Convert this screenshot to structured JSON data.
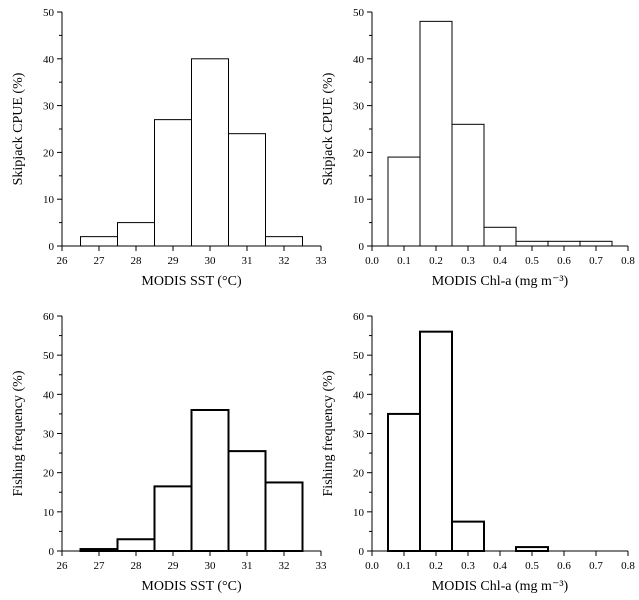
{
  "chart_data": [
    {
      "type": "bar",
      "title": "",
      "xlabel": "MODIS SST (°C)",
      "ylabel": "Skipjack CPUE (%)",
      "xlim": [
        26,
        33
      ],
      "ylim": [
        0,
        50
      ],
      "xticks": [
        "26",
        "27",
        "28",
        "29",
        "30",
        "31",
        "32",
        "33"
      ],
      "yticks": [
        "0",
        "10",
        "20",
        "30",
        "40",
        "50"
      ],
      "bin_edges": [
        26.5,
        27.5,
        28.5,
        29.5,
        30.5,
        31.5,
        32.5
      ],
      "values": [
        2,
        5,
        27,
        40,
        24,
        2
      ],
      "bar_stroke": 1,
      "grid": false
    },
    {
      "type": "bar",
      "title": "",
      "xlabel": "MODIS Chl-a (mg m⁻³)",
      "ylabel": "Skipjack CPUE (%)",
      "xlim": [
        0.0,
        0.8
      ],
      "ylim": [
        0,
        50
      ],
      "xticks": [
        "0.0",
        "0.1",
        "0.2",
        "0.3",
        "0.4",
        "0.5",
        "0.6",
        "0.7",
        "0.8"
      ],
      "yticks": [
        "0",
        "10",
        "20",
        "30",
        "40",
        "50"
      ],
      "bin_edges": [
        0.05,
        0.15,
        0.25,
        0.35,
        0.45,
        0.55,
        0.65,
        0.75
      ],
      "values": [
        19,
        48,
        26,
        4,
        1,
        1,
        1
      ],
      "bar_stroke": 1,
      "grid": false
    },
    {
      "type": "bar",
      "title": "",
      "xlabel": "MODIS SST (°C)",
      "ylabel": "Fishing frequency (%)",
      "xlim": [
        26,
        33
      ],
      "ylim": [
        0,
        60
      ],
      "xticks": [
        "26",
        "27",
        "28",
        "29",
        "30",
        "31",
        "32",
        "33"
      ],
      "yticks": [
        "0",
        "10",
        "20",
        "30",
        "40",
        "50",
        "60"
      ],
      "bin_edges": [
        26.5,
        27.5,
        28.5,
        29.5,
        30.5,
        31.5,
        32.5
      ],
      "values": [
        0.5,
        3,
        16.5,
        36,
        25.5,
        17.5
      ],
      "bar_stroke": 2,
      "grid": false
    },
    {
      "type": "bar",
      "title": "",
      "xlabel": "MODIS Chl-a (mg m⁻³)",
      "ylabel": "Fishing frequency (%)",
      "xlim": [
        0.0,
        0.8
      ],
      "ylim": [
        0,
        60
      ],
      "xticks": [
        "0.0",
        "0.1",
        "0.2",
        "0.3",
        "0.4",
        "0.5",
        "0.6",
        "0.7",
        "0.8"
      ],
      "yticks": [
        "0",
        "10",
        "20",
        "30",
        "40",
        "50",
        "60"
      ],
      "bin_edges": [
        0.05,
        0.15,
        0.25,
        0.35,
        0.45,
        0.55
      ],
      "values": [
        35,
        56,
        7.5,
        0,
        1
      ],
      "bar_stroke": 2,
      "grid": false
    }
  ]
}
